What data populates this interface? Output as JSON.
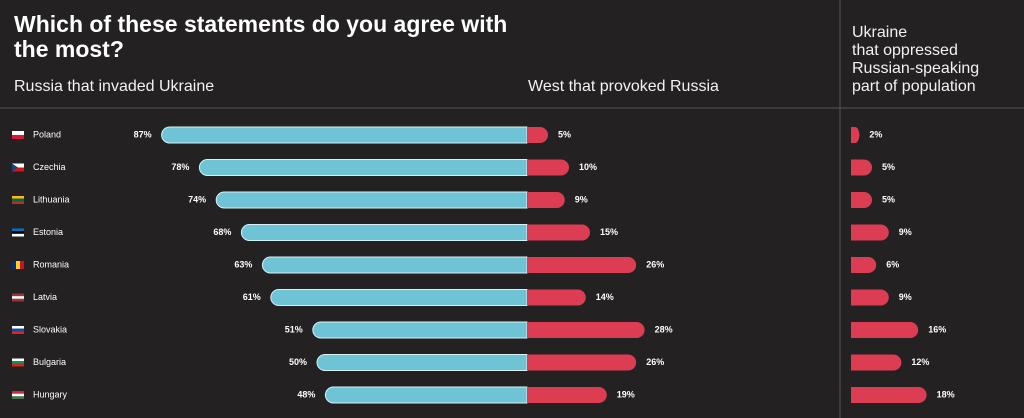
{
  "chart_data": {
    "type": "bar",
    "title": "Which of these statements do you agree with the most?",
    "categories": [
      "Poland",
      "Czechia",
      "Lithuania",
      "Estonia",
      "Romania",
      "Latvia",
      "Slovakia",
      "Bulgaria",
      "Hungary"
    ],
    "series": [
      {
        "name": "Russia that invaded Ukraine",
        "color": "#6ec3d4",
        "values": [
          87,
          78,
          74,
          68,
          63,
          61,
          51,
          50,
          48
        ],
        "value_labels": [
          "87%",
          "78%",
          "74%",
          "68%",
          "63%",
          "61%",
          "51%",
          "50%",
          "48%"
        ]
      },
      {
        "name": "West that provoked Russia",
        "color": "#dc3d52",
        "values": [
          5,
          10,
          9,
          15,
          26,
          14,
          28,
          26,
          19
        ],
        "value_labels": [
          "5%",
          "10%",
          "9%",
          "15%",
          "26%",
          "14%",
          "28%",
          "26%",
          "19%"
        ]
      },
      {
        "name": "Ukraine\nthat oppressed\nRussian-speaking\npart of population",
        "color": "#dc3d52",
        "values": [
          2,
          5,
          5,
          9,
          6,
          9,
          16,
          12,
          18
        ],
        "value_labels": [
          "2%",
          "5%",
          "5%",
          "9%",
          "6%",
          "9%",
          "16%",
          "12%",
          "18%"
        ]
      }
    ]
  }
}
